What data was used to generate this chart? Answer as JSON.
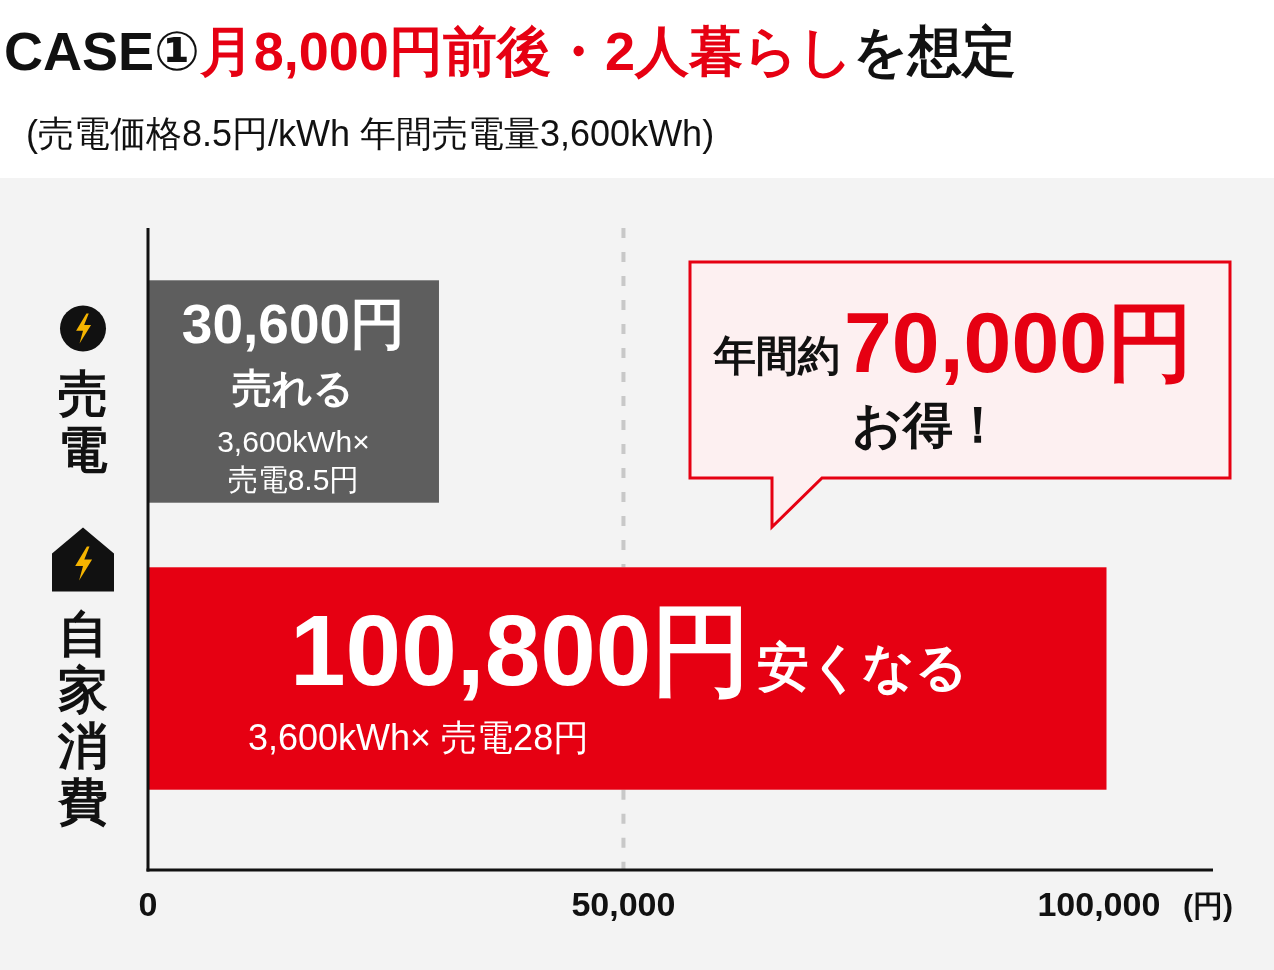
{
  "chart_data": {
    "type": "bar",
    "orientation": "horizontal",
    "title": "CASE①**月8,000円前後・2人暮らし**を想定",
    "subtitle": "(売電価格8.5円/kWh 年間売電量3,600kWh)",
    "xlabel": "(円)",
    "categories": [
      "売電",
      "自家消費"
    ],
    "values": [
      30600,
      100800
    ],
    "colors": [
      "#5e5e5e",
      "#e60012"
    ],
    "value_labels": [
      "30,600円",
      "100,800円"
    ],
    "xlim": [
      0,
      112000
    ],
    "xticks": [
      0,
      {
        "value": 50000,
        "label": "50,000"
      },
      {
        "value": 100000,
        "label": "100,000"
      }
    ],
    "ref_lines": [
      {
        "axis": "x",
        "value": 50000,
        "color": "#c8c8c8",
        "line_style": "dashed"
      }
    ],
    "annotations": [
      "売れる",
      "3,600kWh×",
      "売電8.5円",
      "安くなる",
      "3,600kWh× 売電28円",
      "年間約",
      "70,000円",
      "お得！"
    ]
  }
}
